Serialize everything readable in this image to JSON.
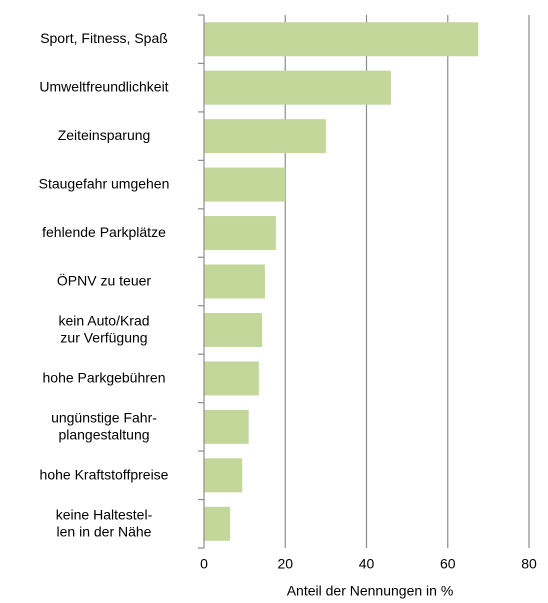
{
  "chart_data": {
    "type": "hbar",
    "categories": [
      [
        "Sport, Fitness, Spaß"
      ],
      [
        "Umweltfreundlichkeit"
      ],
      [
        "Zeiteinsparung"
      ],
      [
        "Staugefahr umgehen"
      ],
      [
        "fehlende Parkplätze"
      ],
      [
        "ÖPNV zu teuer"
      ],
      [
        "kein Auto/Krad",
        "zur Verfügung"
      ],
      [
        "hohe Parkgebühren"
      ],
      [
        "ungünstige Fahr-",
        "plangestaltung"
      ],
      [
        "hohe Kraftstoffpreise"
      ],
      [
        "keine Haltestel-",
        "len in der Nähe"
      ]
    ],
    "values": [
      67.5,
      46,
      30,
      20,
      17.7,
      15,
      14.3,
      13.5,
      11,
      9.4,
      6.4
    ],
    "color": "#c4d79b",
    "xlim": [
      0,
      80
    ],
    "xticks": [
      0,
      20,
      40,
      60,
      80
    ],
    "xlabel": "Anteil der Nennungen in %",
    "grid": true
  }
}
